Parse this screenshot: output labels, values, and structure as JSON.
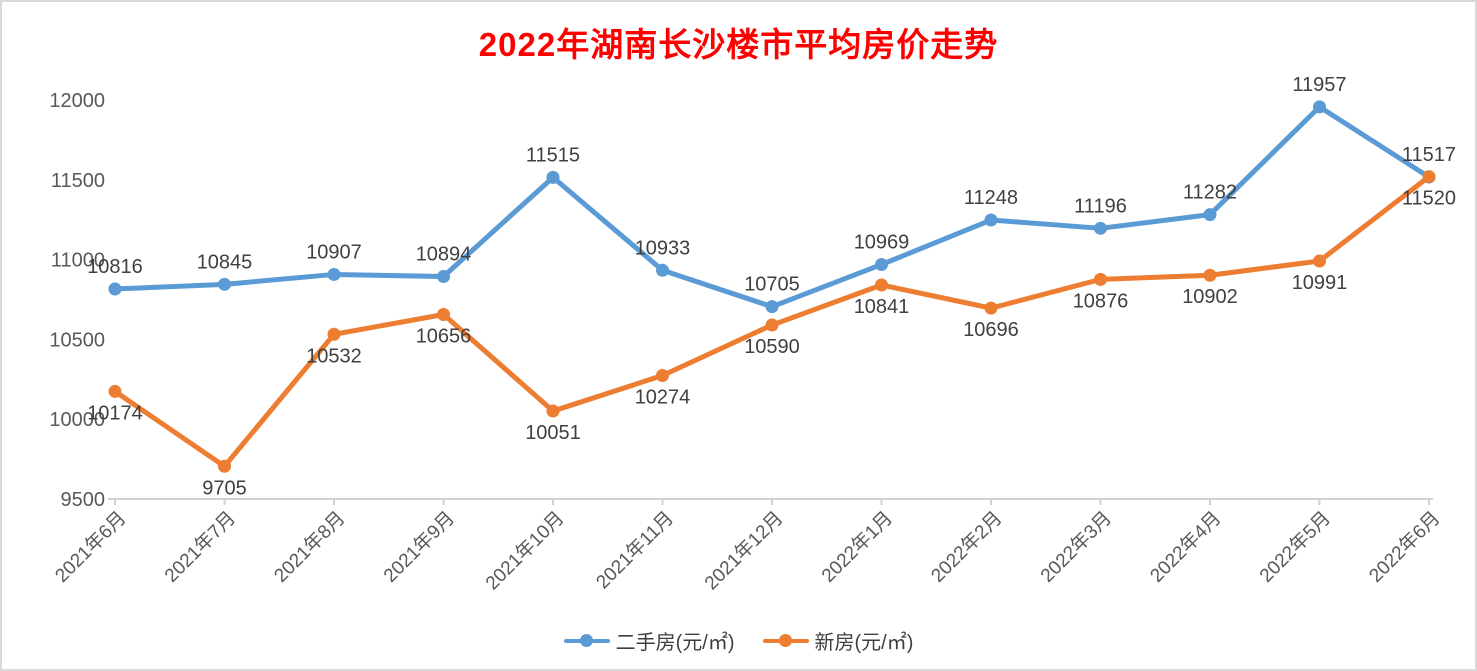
{
  "title": "2022年湖南长沙楼市平均房价走势",
  "title_color": "#FF0000",
  "chart_data": {
    "type": "line",
    "title": "2022年湖南长沙楼市平均房价走势",
    "categories": [
      "2021年6月",
      "2021年7月",
      "2021年8月",
      "2021年9月",
      "2021年10月",
      "2021年11月",
      "2021年12月",
      "2022年1月",
      "2022年2月",
      "2022年3月",
      "2022年4月",
      "2022年5月",
      "2022年6月"
    ],
    "series": [
      {
        "name": "二手房(元/㎡)",
        "color": "#5B9BD5",
        "label_position": "above",
        "values": [
          10816,
          10845,
          10907,
          10894,
          11515,
          10933,
          10705,
          10969,
          11248,
          11196,
          11282,
          11957,
          11517
        ]
      },
      {
        "name": "新房(元/㎡)",
        "color": "#ED7D31",
        "label_position": "below",
        "values": [
          10174,
          9705,
          10532,
          10656,
          10051,
          10274,
          10590,
          10841,
          10696,
          10876,
          10902,
          10991,
          11520
        ]
      }
    ],
    "ylim": [
      9500,
      12000
    ],
    "yticks": [
      9500,
      10000,
      10500,
      11000,
      11500,
      12000
    ],
    "grid": false,
    "data_labels": true,
    "legend_position": "bottom",
    "xlabel": "",
    "ylabel": "",
    "axis_color": "#D0D0D0",
    "tick_label_color": "#595959",
    "data_label_color": "#404040"
  }
}
